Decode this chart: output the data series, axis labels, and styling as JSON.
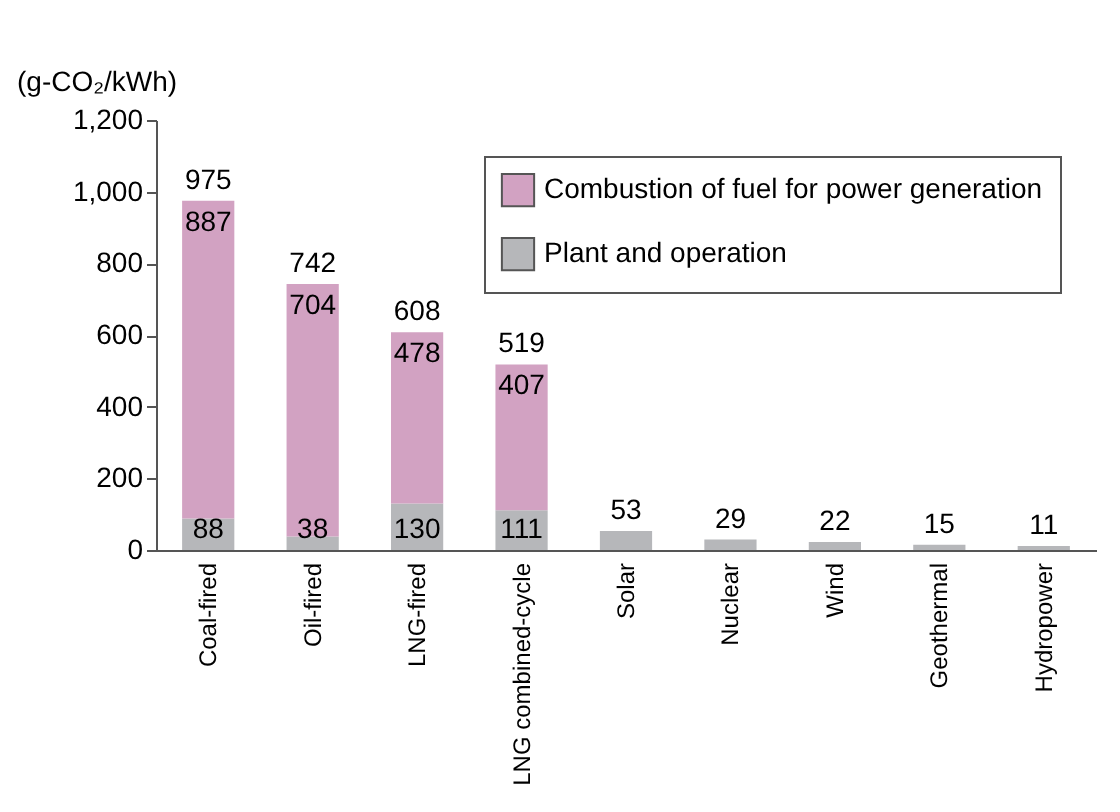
{
  "chart_data": {
    "type": "bar",
    "ylabel": "(g-CO₂/kWh)",
    "categories": [
      "Coal-fired",
      "Oil-fired",
      "LNG-fired",
      "LNG combined-cycle",
      "Solar",
      "Nuclear",
      "Wind",
      "Geothermal",
      "Hydropower"
    ],
    "series": [
      {
        "name": "Plant and operation",
        "color": "#b6b7ba",
        "values": [
          88,
          38,
          130,
          111,
          53,
          29,
          22,
          15,
          11
        ]
      },
      {
        "name": "Combustion of fuel for power generation",
        "color": "#d2a2c2",
        "values": [
          887,
          704,
          478,
          407,
          null,
          null,
          null,
          null,
          null
        ]
      }
    ],
    "stacked": true,
    "data_labels": true,
    "totals": [
      "975",
      "742",
      "608",
      "519",
      null,
      null,
      null,
      null,
      null
    ],
    "ylim": [
      0,
      1200
    ],
    "yticks": [
      0,
      200,
      400,
      600,
      800,
      {
        "value": 1000,
        "label": "1,000"
      },
      {
        "value": 1200,
        "label": "1,200"
      }
    ],
    "grid": false,
    "legend": "top right"
  }
}
